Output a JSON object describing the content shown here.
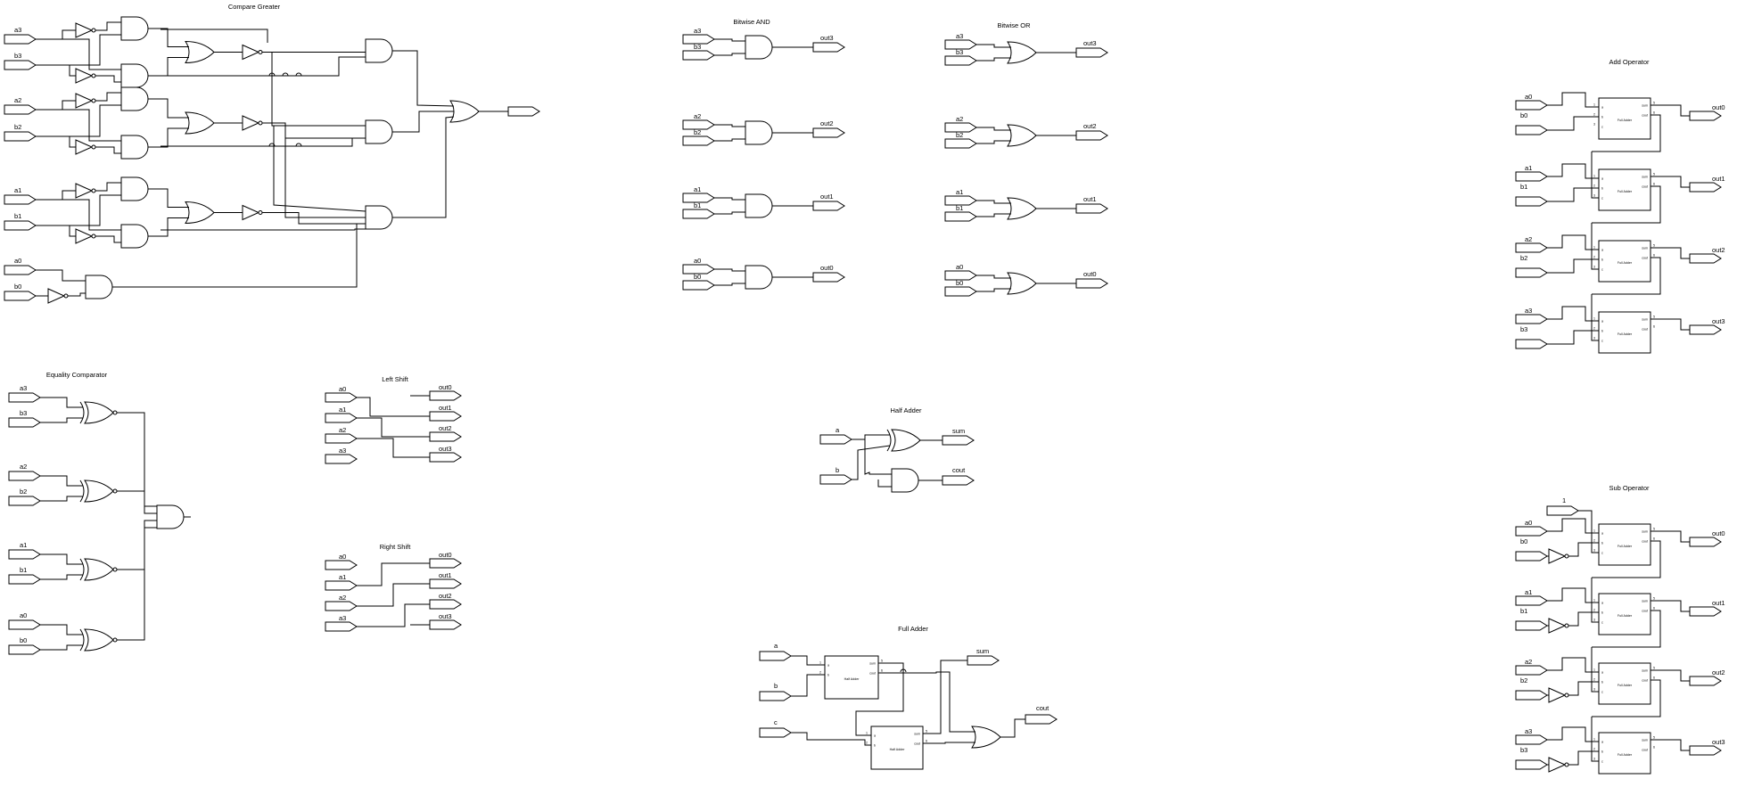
{
  "sections": {
    "compare_greater": {
      "title": "Compare Greater",
      "inputs": [
        "a3",
        "b3",
        "a2",
        "b2",
        "a1",
        "b1",
        "a0",
        "b0"
      ]
    },
    "bitwise_and": {
      "title": "Bitwise AND",
      "rows": [
        {
          "a": "a3",
          "b": "b3",
          "out": "out3"
        },
        {
          "a": "a2",
          "b": "b2",
          "out": "out2"
        },
        {
          "a": "a1",
          "b": "b1",
          "out": "out1"
        },
        {
          "a": "a0",
          "b": "b0",
          "out": "out0"
        }
      ]
    },
    "bitwise_or": {
      "title": "Bitwise OR",
      "rows": [
        {
          "a": "a3",
          "b": "b3",
          "out": "out3"
        },
        {
          "a": "a2",
          "b": "b2",
          "out": "out2"
        },
        {
          "a": "a1",
          "b": "b1",
          "out": "out1"
        },
        {
          "a": "a0",
          "b": "b0",
          "out": "out0"
        }
      ]
    },
    "add_operator": {
      "title": "Add Operator",
      "rows": [
        {
          "a": "a0",
          "b": "b0",
          "out": "out0"
        },
        {
          "a": "a1",
          "b": "b1",
          "out": "out1"
        },
        {
          "a": "a2",
          "b": "b2",
          "out": "out2"
        },
        {
          "a": "a3",
          "b": "b3",
          "out": "out3"
        }
      ],
      "block_label": "Full Adder"
    },
    "sub_operator": {
      "title": "Sub Operator",
      "carry_in": "1",
      "rows": [
        {
          "a": "a0",
          "b": "b0",
          "out": "out0"
        },
        {
          "a": "a1",
          "b": "b1",
          "out": "out1"
        },
        {
          "a": "a2",
          "b": "b2",
          "out": "out2"
        },
        {
          "a": "a3",
          "b": "b3",
          "out": "out3"
        }
      ],
      "block_label": "Full Adder"
    },
    "equality_comparator": {
      "title": "Equality Comparator",
      "rows": [
        {
          "a": "a3",
          "b": "b3"
        },
        {
          "a": "a2",
          "b": "b2"
        },
        {
          "a": "a1",
          "b": "b1"
        },
        {
          "a": "a0",
          "b": "b0"
        }
      ]
    },
    "left_shift": {
      "title": "Left Shift",
      "inputs": [
        "a0",
        "a1",
        "a2",
        "a3"
      ],
      "outputs": [
        "out0",
        "out1",
        "out2",
        "out3"
      ]
    },
    "right_shift": {
      "title": "Right Shift",
      "inputs": [
        "a0",
        "a1",
        "a2",
        "a3"
      ],
      "outputs": [
        "out0",
        "out1",
        "out2",
        "out3"
      ]
    },
    "half_adder": {
      "title": "Half Adder",
      "inputs": [
        "a",
        "b"
      ],
      "outputs": [
        "sum",
        "cout"
      ]
    },
    "full_adder": {
      "title": "Full Adder",
      "inputs": [
        "a",
        "b",
        "c"
      ],
      "outputs": [
        "sum",
        "cout"
      ],
      "block_label": "Half Adder"
    }
  },
  "block_pins": {
    "full_adder_in": [
      "a",
      "b",
      "c"
    ],
    "full_adder_out": [
      "sum",
      "cout"
    ],
    "half_adder_in": [
      "a",
      "b"
    ],
    "half_adder_out": [
      "sum",
      "cout"
    ],
    "in_numbers": [
      "1",
      "2",
      "3"
    ],
    "out_numbers": [
      "5",
      "6"
    ]
  }
}
